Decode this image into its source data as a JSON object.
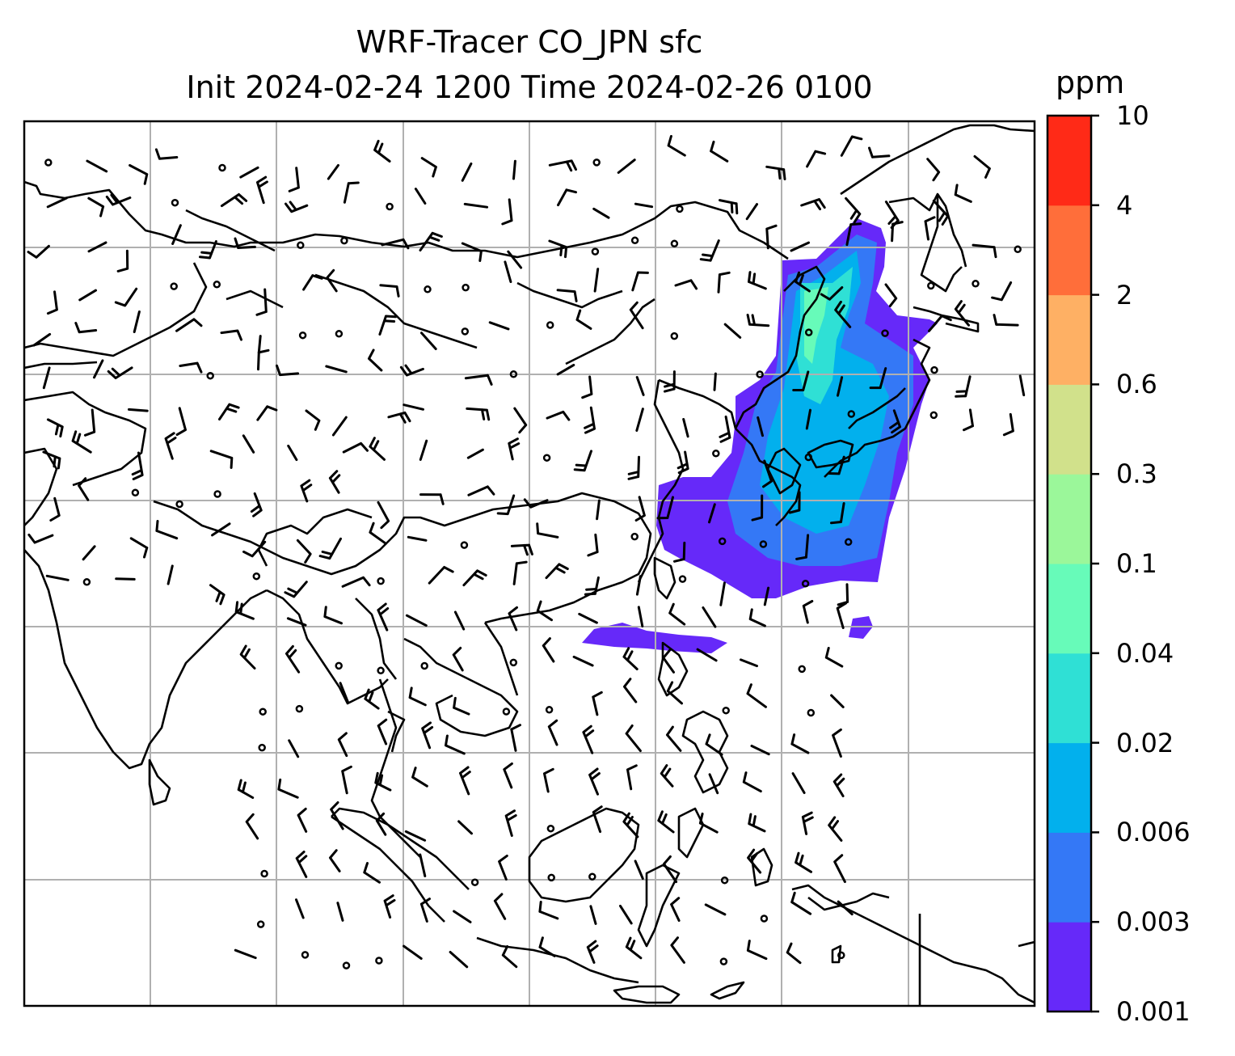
{
  "title": {
    "line1": "WRF-Tracer CO_JPN sfc",
    "line2": "Init 2024-02-24 1200 Time 2024-02-26 0100"
  },
  "colorbar": {
    "unit": "ppm",
    "levels": [
      "0.001",
      "0.003",
      "0.006",
      "0.02",
      "0.04",
      "0.1",
      "0.3",
      "0.6",
      "2",
      "4",
      "10"
    ],
    "colors": [
      "#6629f9",
      "#3478f6",
      "#02b0ed",
      "#2fe0d5",
      "#67fbb9",
      "#9bf79a",
      "#d1e18b",
      "#feb064",
      "#ff6e3a",
      "#ff2a17"
    ]
  },
  "map": {
    "gridlines": true,
    "land_outline_color": "#000000",
    "grid_color": "#b0b0b0",
    "features": [
      "coastlines",
      "wind-barbs",
      "co-tracer-concentration"
    ]
  }
}
